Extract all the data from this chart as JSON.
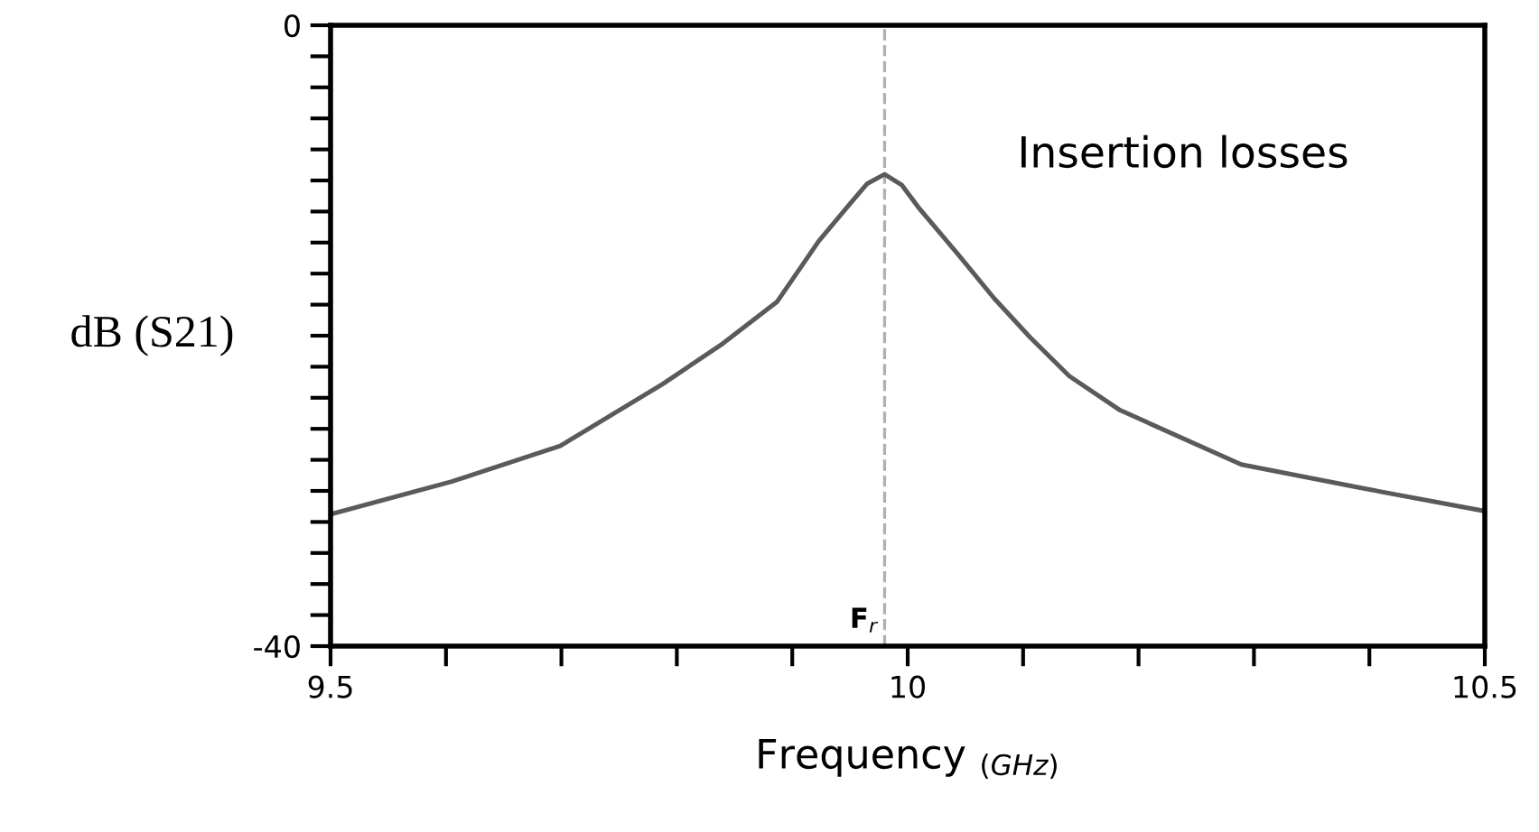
{
  "chart_data": {
    "type": "line",
    "xlabel": "Frequency $_{(GHz)}$",
    "ylabel": "dB (S21)",
    "x": [
      9.5,
      9.605,
      9.699,
      9.788,
      9.84,
      9.887,
      9.923,
      9.95,
      9.965,
      9.98,
      9.995,
      10.01,
      10.043,
      10.075,
      10.106,
      10.14,
      10.184,
      10.289,
      10.392,
      10.5
    ],
    "series": [
      {
        "color": "#5a5a5a",
        "values": [
          -31.5,
          -29.4,
          -27.1,
          -23.1,
          -20.5,
          -17.8,
          -13.9,
          -11.5,
          -10.2,
          -9.6,
          -10.3,
          -11.8,
          -14.7,
          -17.6,
          -20.1,
          -22.6,
          -24.8,
          -28.3,
          -29.8,
          -31.3
        ]
      }
    ],
    "xlim": [
      9.5,
      10.5
    ],
    "ylim": [
      -40,
      0
    ],
    "xticks": [
      9.5,
      {
        "value": 9.6,
        "label": null
      },
      {
        "value": 9.7,
        "label": null
      },
      {
        "value": 9.8,
        "label": null
      },
      {
        "value": 9.9,
        "label": null
      },
      10,
      {
        "value": 10.1,
        "label": null
      },
      {
        "value": 10.2,
        "label": null
      },
      {
        "value": 10.3,
        "label": null
      },
      {
        "value": 10.4,
        "label": null
      },
      10.5
    ],
    "yticks": [
      {
        "value": -40,
        "label": "-40"
      },
      {
        "value": -38,
        "label": null
      },
      {
        "value": -36,
        "label": null
      },
      {
        "value": -34,
        "label": null
      },
      {
        "value": -32,
        "label": null
      },
      {
        "value": -30,
        "label": null
      },
      {
        "value": -28,
        "label": null
      },
      {
        "value": -26,
        "label": null
      },
      {
        "value": -24,
        "label": null
      },
      {
        "value": -22,
        "label": null
      },
      {
        "value": -20,
        "label": null
      },
      {
        "value": -18,
        "label": null
      },
      {
        "value": -16,
        "label": null
      },
      {
        "value": -14,
        "label": null
      },
      {
        "value": -12,
        "label": null
      },
      {
        "value": -10,
        "label": null
      },
      {
        "value": -8,
        "label": null
      },
      {
        "value": -6,
        "label": null
      },
      {
        "value": -4,
        "label": null
      },
      {
        "value": -2,
        "label": null
      },
      0
    ],
    "ref_lines": [
      {
        "axis": "x",
        "value": 9.98,
        "label": "F$_{r}$",
        "color": "#b0b0b0",
        "line_style": "dashed"
      }
    ],
    "annotations": [
      "Insertion losses"
    ],
    "grid": false,
    "legend": false,
    "marker": "none",
    "line_style": "solid"
  }
}
